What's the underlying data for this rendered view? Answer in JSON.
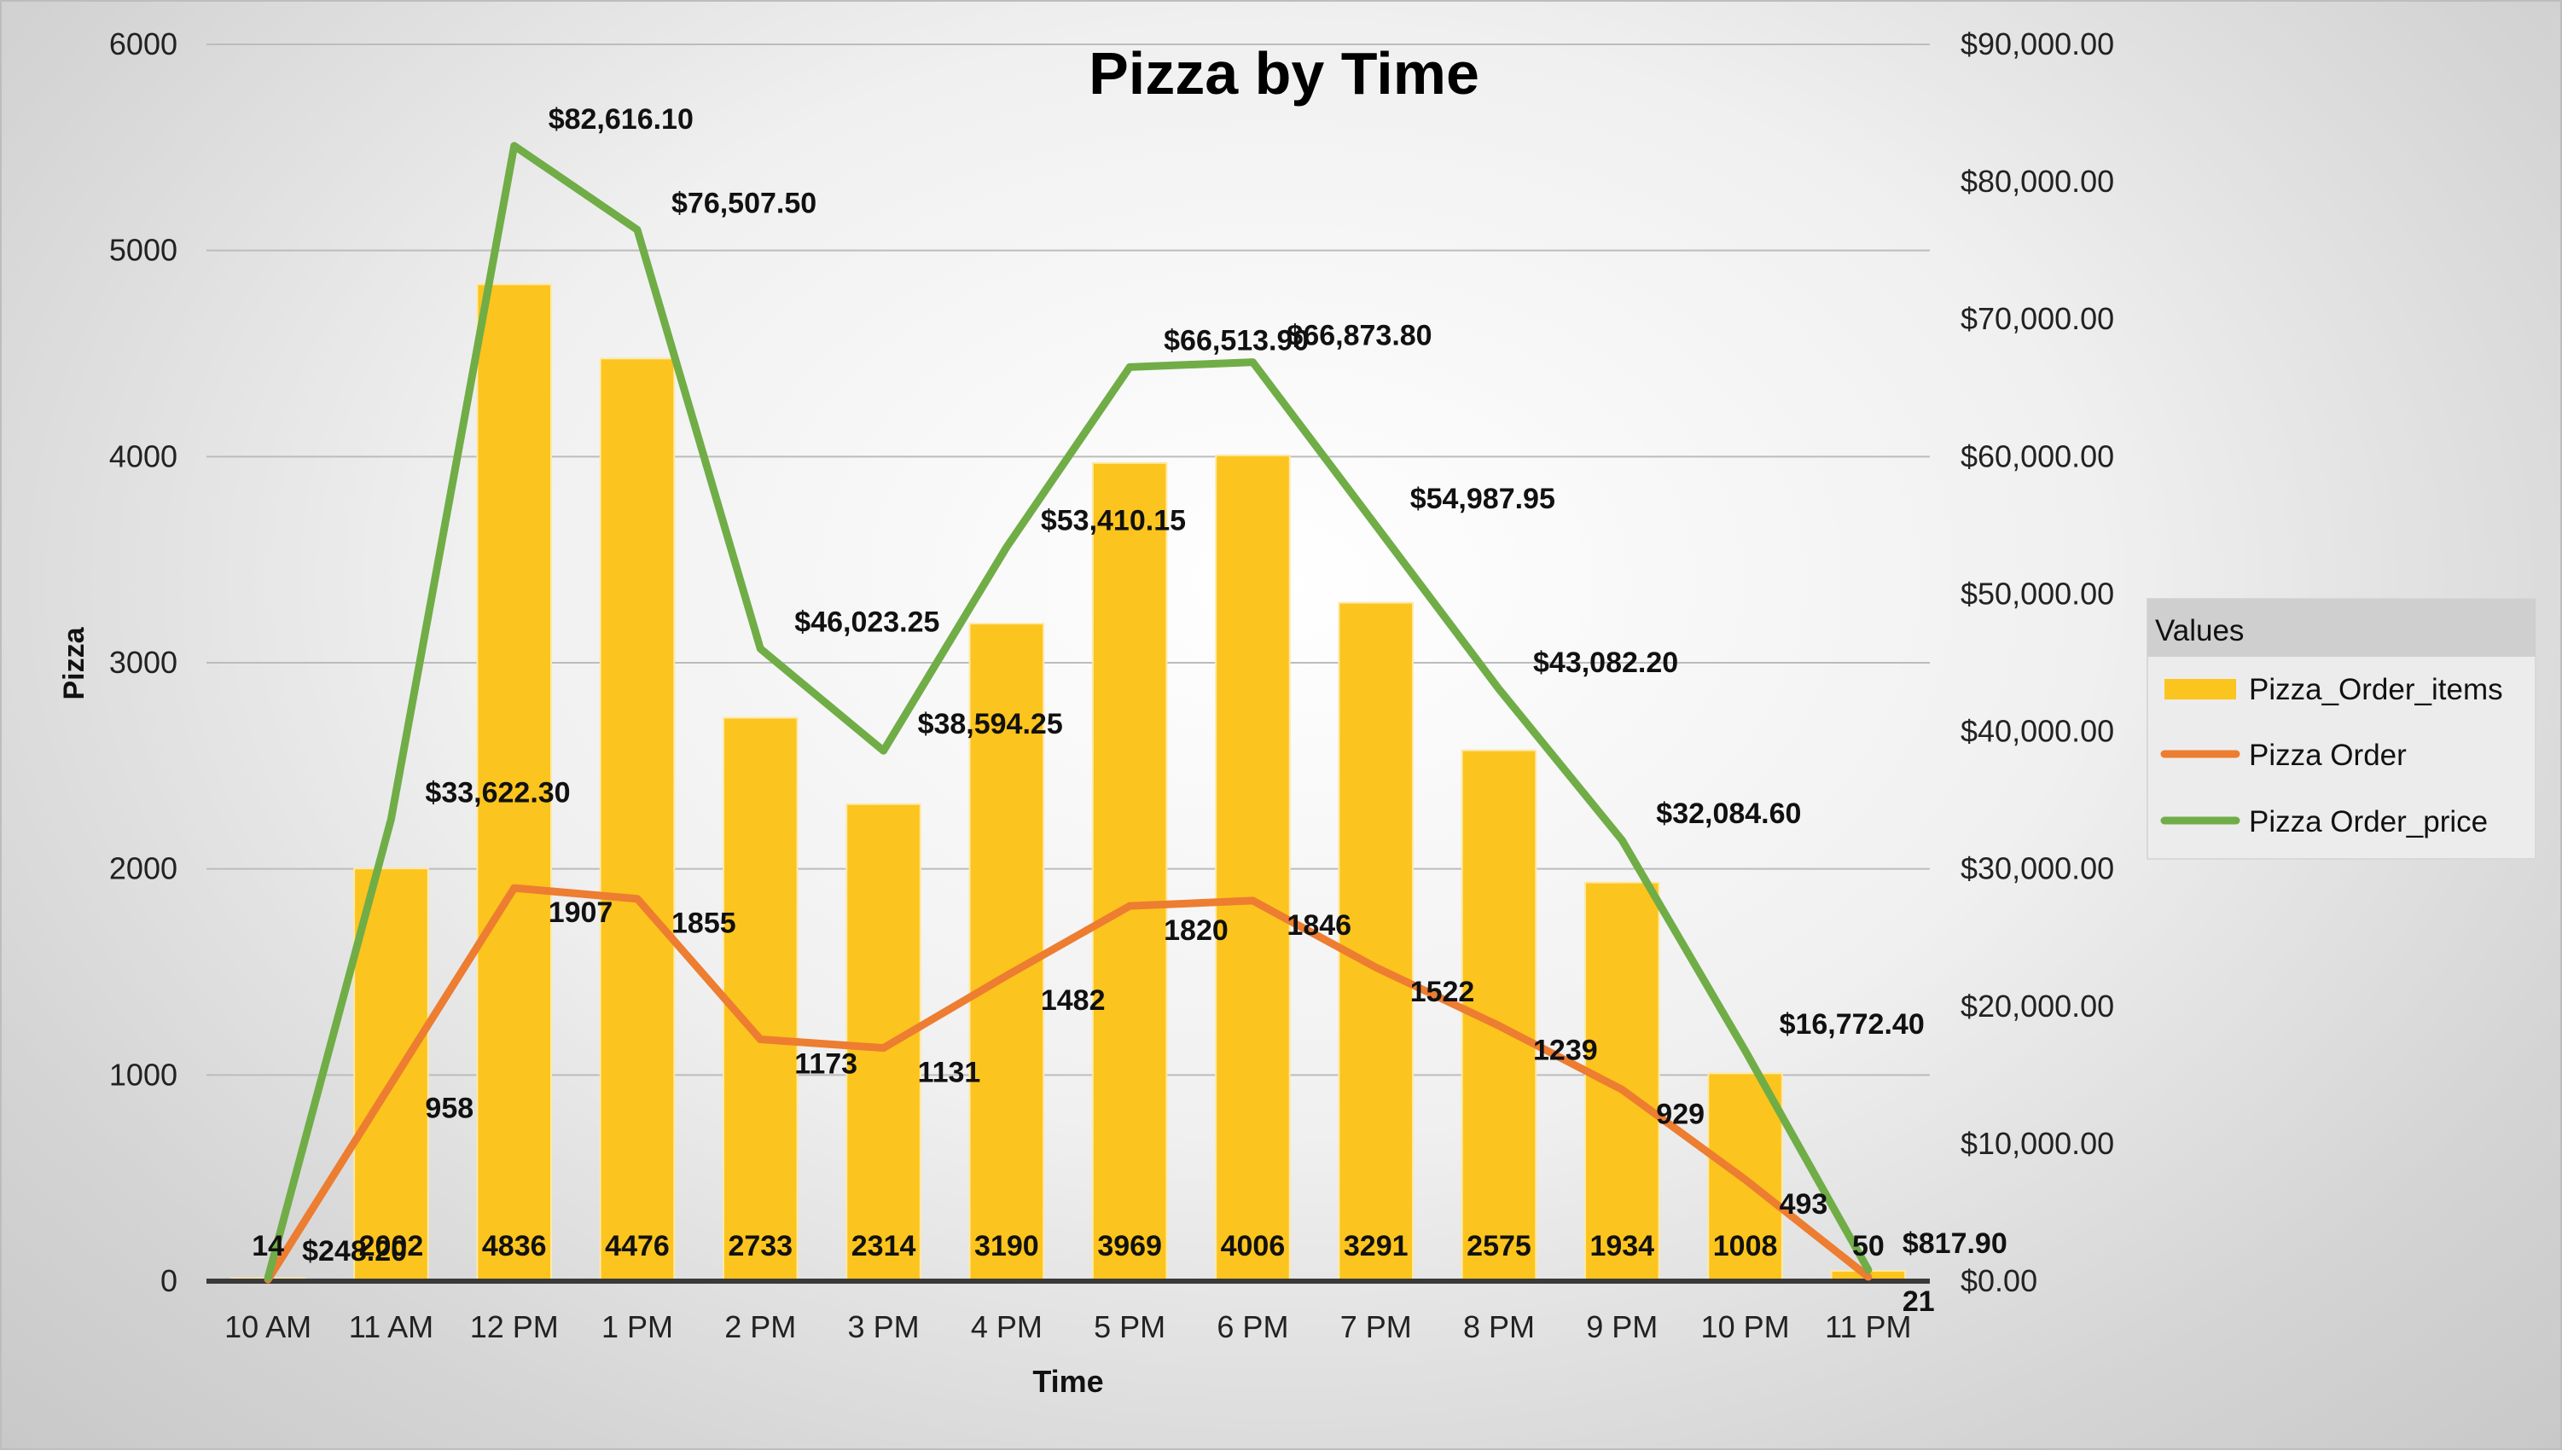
{
  "chart_data": {
    "type": "bar",
    "title": "Pizza by Time",
    "xlabel": "Time",
    "ylabel": "Pizza",
    "categories": [
      "10 AM",
      "11 AM",
      "12 PM",
      "1 PM",
      "2 PM",
      "3 PM",
      "4 PM",
      "5 PM",
      "6 PM",
      "7 PM",
      "8 PM",
      "9 PM",
      "10 PM",
      "11 PM"
    ],
    "ylim": [
      0,
      6000
    ],
    "y_ticks": [
      "0",
      "1000",
      "2000",
      "3000",
      "4000",
      "5000",
      "6000"
    ],
    "y2lim": [
      0,
      90000
    ],
    "y2_ticks": [
      "$0.00",
      "$10,000.00",
      "$20,000.00",
      "$30,000.00",
      "$40,000.00",
      "$50,000.00",
      "$60,000.00",
      "$70,000.00",
      "$80,000.00",
      "$90,000.00"
    ],
    "grid": true,
    "legend": {
      "title": "Values",
      "position": "right"
    },
    "series": [
      {
        "name": "Pizza_Order_items",
        "type": "bar",
        "axis": "left",
        "color": "#FCC41E",
        "values": [
          14,
          2002,
          4836,
          4476,
          2733,
          2314,
          3190,
          3969,
          4006,
          3291,
          2575,
          1934,
          1008,
          50
        ],
        "labels": [
          "14",
          "2002",
          "4836",
          "4476",
          "2733",
          "2314",
          "3190",
          "3969",
          "4006",
          "3291",
          "2575",
          "1934",
          "1008",
          "50"
        ]
      },
      {
        "name": "Pizza Order",
        "type": "line",
        "axis": "left",
        "color": "#ED7D31",
        "values": [
          8,
          958,
          1907,
          1855,
          1173,
          1131,
          1482,
          1820,
          1846,
          1522,
          1239,
          929,
          493,
          21
        ],
        "labels": [
          "",
          "958",
          "1907",
          "1855",
          "1173",
          "1131",
          "1482",
          "1820",
          "1846",
          "1522",
          "1239",
          "929",
          "493",
          "21"
        ]
      },
      {
        "name": "Pizza Order_price",
        "type": "line",
        "axis": "right",
        "color": "#70AD47",
        "values": [
          248.2,
          33622.3,
          82616.1,
          76507.5,
          46023.25,
          38594.25,
          53410.15,
          66513.9,
          66873.8,
          54987.95,
          43082.2,
          32084.6,
          16772.4,
          817.9
        ],
        "labels": [
          "$248.20",
          "$33,622.30",
          "$82,616.10",
          "$76,507.50",
          "$46,023.25",
          "$38,594.25",
          "$53,410.15",
          "$66,513.90",
          "$66,873.80",
          "$54,987.95",
          "$43,082.20",
          "$32,084.60",
          "$16,772.40",
          "$817.90"
        ]
      }
    ]
  }
}
